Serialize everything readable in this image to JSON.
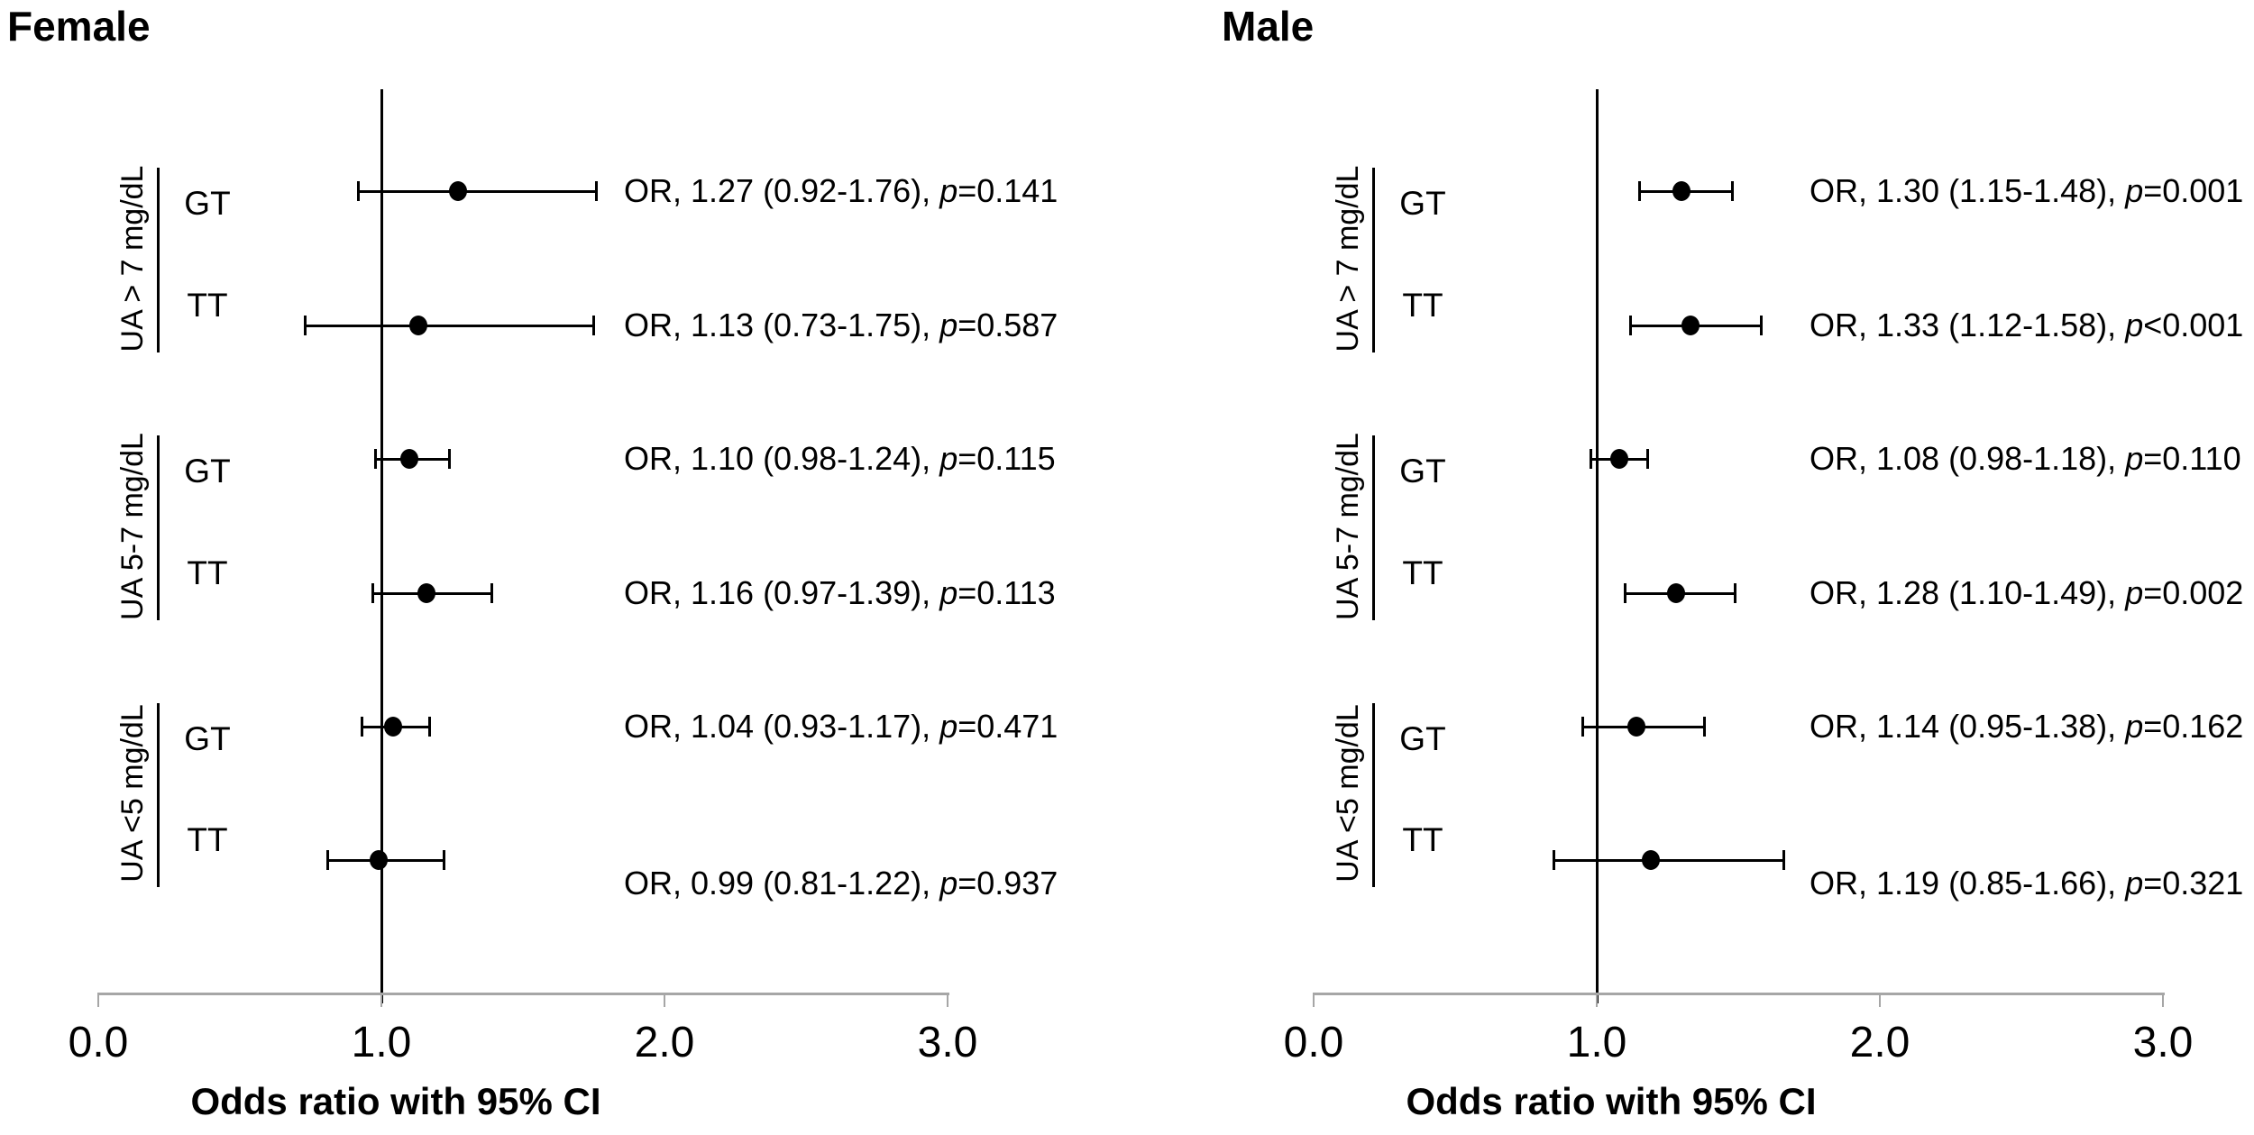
{
  "figure": {
    "x_tick_labels": [
      "0.0",
      "1.0",
      "2.0",
      "3.0"
    ]
  },
  "colors": {
    "ink": "#000000",
    "axis": "#a6a6a6",
    "background": "#ffffff"
  },
  "chart_data": [
    {
      "type": "scatter",
      "title": "Female",
      "xlabel": "Odds ratio with 95% CI",
      "xlim": [
        0,
        3
      ],
      "xticks": [
        0,
        1,
        2,
        3
      ],
      "reference_line": 1.0,
      "legend": "none",
      "grid": false,
      "groups": [
        {
          "label": "UA > 7 mg/dL",
          "rows": [
            {
              "genotype": "GT",
              "or": 1.27,
              "ci_low": 0.92,
              "ci_high": 1.76,
              "p": 0.141,
              "annotation_prefix": "OR, 1.27 (0.92-1.76), ",
              "p_symbol": "p",
              "p_rest": "=0.141"
            },
            {
              "genotype": "TT",
              "or": 1.13,
              "ci_low": 0.73,
              "ci_high": 1.75,
              "p": 0.587,
              "annotation_prefix": "OR, 1.13 (0.73-1.75), ",
              "p_symbol": "p",
              "p_rest": "=0.587"
            }
          ]
        },
        {
          "label": "UA 5-7 mg/dL",
          "rows": [
            {
              "genotype": "GT",
              "or": 1.1,
              "ci_low": 0.98,
              "ci_high": 1.24,
              "p": 0.115,
              "annotation_prefix": "OR, 1.10 (0.98-1.24), ",
              "p_symbol": "p",
              "p_rest": "=0.115"
            },
            {
              "genotype": "TT",
              "or": 1.16,
              "ci_low": 0.97,
              "ci_high": 1.39,
              "p": 0.113,
              "annotation_prefix": "OR, 1.16 (0.97-1.39), ",
              "p_symbol": "p",
              "p_rest": "=0.113"
            }
          ]
        },
        {
          "label": "UA <5 mg/dL",
          "rows": [
            {
              "genotype": "GT",
              "or": 1.04,
              "ci_low": 0.93,
              "ci_high": 1.17,
              "p": 0.471,
              "annotation_prefix": "OR, 1.04 (0.93-1.17), ",
              "p_symbol": "p",
              "p_rest": "=0.471"
            },
            {
              "genotype": "TT",
              "or": 0.99,
              "ci_low": 0.81,
              "ci_high": 1.22,
              "p": 0.937,
              "annotation_prefix": "OR, 0.99 (0.81-1.22), ",
              "p_symbol": "p",
              "p_rest": "=0.937"
            }
          ]
        }
      ]
    },
    {
      "type": "scatter",
      "title": "Male",
      "xlabel": "Odds ratio with 95% CI",
      "xlim": [
        0,
        3
      ],
      "xticks": [
        0,
        1,
        2,
        3
      ],
      "reference_line": 1.0,
      "legend": "none",
      "grid": false,
      "groups": [
        {
          "label": "UA > 7 mg/dL",
          "rows": [
            {
              "genotype": "GT",
              "or": 1.3,
              "ci_low": 1.15,
              "ci_high": 1.48,
              "p": 0.001,
              "annotation_prefix": "OR, 1.30 (1.15-1.48), ",
              "p_symbol": "p",
              "p_rest": "=0.001"
            },
            {
              "genotype": "TT",
              "or": 1.33,
              "ci_low": 1.12,
              "ci_high": 1.58,
              "p": "<0.001",
              "annotation_prefix": "OR, 1.33 (1.12-1.58), ",
              "p_symbol": "p",
              "p_rest": "<0.001"
            }
          ]
        },
        {
          "label": "UA 5-7 mg/dL",
          "rows": [
            {
              "genotype": "GT",
              "or": 1.08,
              "ci_low": 0.98,
              "ci_high": 1.18,
              "p": 0.11,
              "annotation_prefix": "OR, 1.08 (0.98-1.18), ",
              "p_symbol": "p",
              "p_rest": "=0.110"
            },
            {
              "genotype": "TT",
              "or": 1.28,
              "ci_low": 1.1,
              "ci_high": 1.49,
              "p": 0.002,
              "annotation_prefix": "OR, 1.28 (1.10-1.49), ",
              "p_symbol": "p",
              "p_rest": "=0.002"
            }
          ]
        },
        {
          "label": "UA <5 mg/dL",
          "rows": [
            {
              "genotype": "GT",
              "or": 1.14,
              "ci_low": 0.95,
              "ci_high": 1.38,
              "p": 0.162,
              "annotation_prefix": "OR, 1.14 (0.95-1.38), ",
              "p_symbol": "p",
              "p_rest": "=0.162"
            },
            {
              "genotype": "TT",
              "or": 1.19,
              "ci_low": 0.85,
              "ci_high": 1.66,
              "p": 0.321,
              "annotation_prefix": "OR, 1.19 (0.85-1.66), ",
              "p_symbol": "p",
              "p_rest": "=0.321"
            }
          ]
        }
      ]
    }
  ]
}
